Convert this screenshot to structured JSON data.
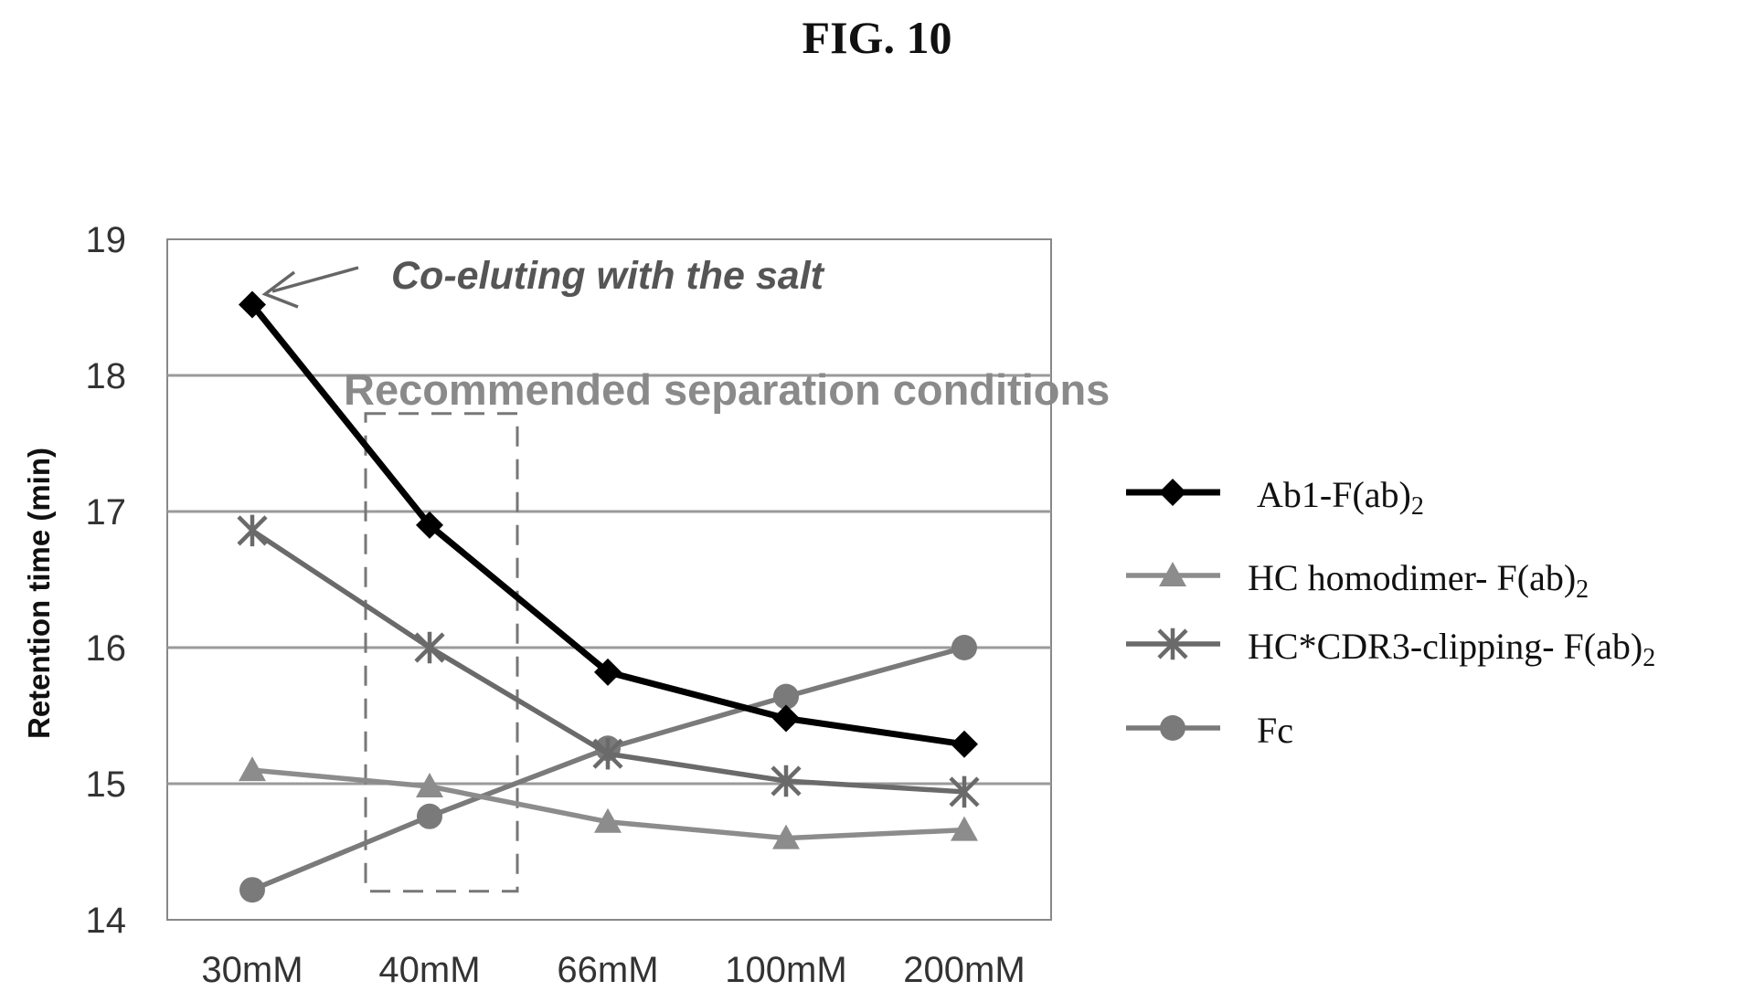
{
  "figure_title": "FIG. 10",
  "chart_data": {
    "type": "line",
    "categories": [
      "30mM",
      "40mM",
      "66mM",
      "100mM",
      "200mM"
    ],
    "ylabel": "Retention time (min)",
    "ylim": [
      14,
      19
    ],
    "yticks": [
      14,
      15,
      16,
      17,
      18,
      19
    ],
    "grid": "horizontal",
    "legend_position": "right",
    "series": [
      {
        "name": "Ab1-F(ab)",
        "name_sub": "2",
        "marker": "diamond",
        "color": "#000000",
        "values": [
          18.52,
          16.9,
          15.82,
          15.48,
          15.29
        ]
      },
      {
        "name": "HC homodimer- F(ab)",
        "name_sub": "2",
        "marker": "triangle",
        "color": "#8c8c8c",
        "values": [
          15.1,
          14.98,
          14.72,
          14.6,
          14.66
        ]
      },
      {
        "name": "HC*CDR3-clipping- F(ab)",
        "name_sub": "2",
        "marker": "asterisk",
        "color": "#6a6a6a",
        "values": [
          16.86,
          16.0,
          15.22,
          15.02,
          14.94
        ]
      },
      {
        "name": "Fc",
        "name_sub": "",
        "marker": "circle",
        "color": "#7a7a7a",
        "values": [
          14.22,
          14.76,
          15.26,
          15.64,
          16.0
        ]
      }
    ],
    "annotations": [
      {
        "text": "Co-eluting with the salt",
        "points_to": "30mM Ab1-F(ab)2 point"
      },
      {
        "text": "Recommended separation conditions",
        "region": "40mM (dashed box)"
      }
    ]
  }
}
